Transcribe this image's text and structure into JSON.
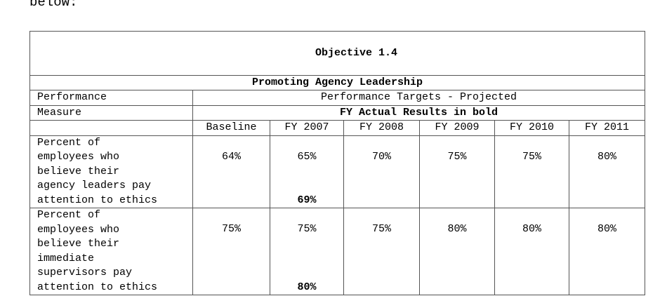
{
  "intro_text": "below:",
  "table": {
    "objective": "Objective 1.4",
    "objective_title": "Promoting Agency Leadership",
    "performance_measure_label_1": "Performance",
    "performance_measure_label_2": "Measure",
    "targets_header": "Performance Targets - Projected",
    "actuals_header": "FY Actual Results in bold",
    "columns": [
      "Baseline",
      "FY 2007",
      "FY 2008",
      "FY 2009",
      "FY 2010",
      "FY 2011"
    ],
    "rows": [
      {
        "measure": "Percent of\nemployees who\nbelieve their\nagency leaders pay\nattention to ethics",
        "values": [
          "64%",
          "65%",
          "70%",
          "75%",
          "75%",
          "80%"
        ],
        "actual_fy2007": "69%"
      },
      {
        "measure": "Percent of\nemployees who\nbelieve their\nimmediate\nsupervisors pay\nattention to ethics",
        "values": [
          "75%",
          "75%",
          "75%",
          "80%",
          "80%",
          "80%"
        ],
        "actual_fy2007": "80%"
      }
    ]
  }
}
